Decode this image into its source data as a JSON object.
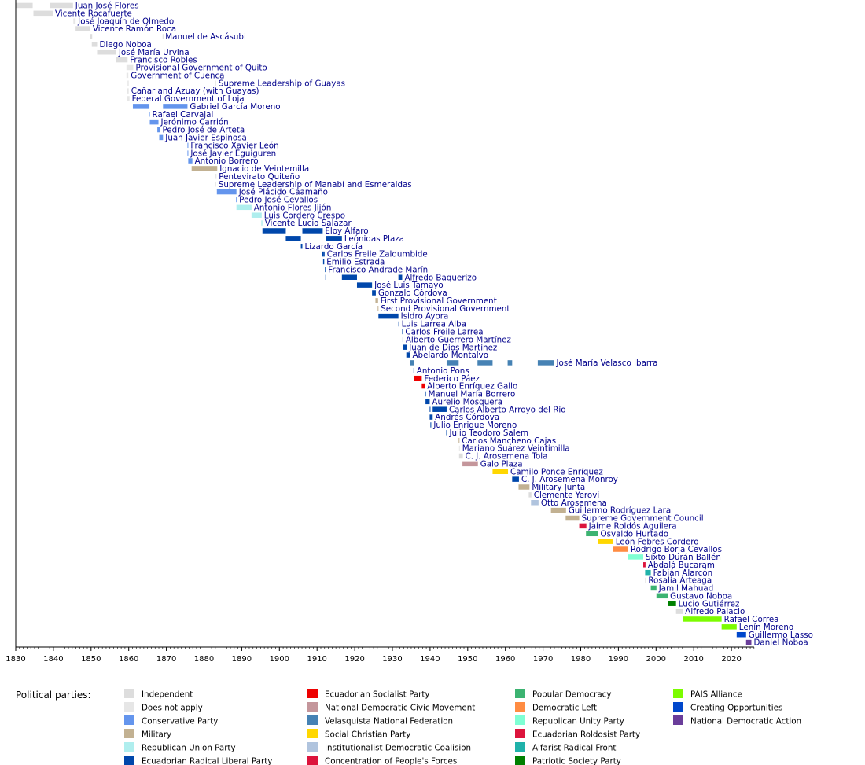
{
  "colors": {
    "Independent": "#DDDDDD",
    "Does not apply": "#E6E6E6",
    "Conservative Party": "#6495ED",
    "Military": "#C2B192",
    "Republican Union Party": "#AFEEEE",
    "Ecuadorian Radical Liberal Party": "#0047AB",
    "Ecuadorian Socialist Party": "#EE0000",
    "National Democratic Civic Movement": "#C4969B",
    "Velasquista National Federation": "#4682B4",
    "Social Christian Party": "#FFD700",
    "Institutionalist Democratic Coalision": "#B0C4DE",
    "Concentration of People's Forces": "#DC143C",
    "Popular Democracy": "#3CB371",
    "Democratic Left": "#FF8C42",
    "Republican Unity Party": "#7FFFD4",
    "Ecuadorian Roldosist Party": "#DC143C",
    "Alfarist Radical Front": "#20B2AA",
    "Patriotic Society Party": "#008000",
    "PAIS Alliance": "#7CFC00",
    "Creating Opportunities": "#0047CC",
    "National Democratic Action": "#6A3D9A"
  },
  "chart_data": {
    "type": "timeline",
    "xlim": [
      1830,
      2026
    ],
    "x_ticks": [
      "1830",
      "1840",
      "1850",
      "1860",
      "1870",
      "1880",
      "1890",
      "1900",
      "1910",
      "1920",
      "1930",
      "1940",
      "1950",
      "1960",
      "1970",
      "1980",
      "1990",
      "2000",
      "2010",
      "2020"
    ],
    "presidents": [
      {
        "name": "Juan José Flores",
        "terms": [
          [
            1830,
            1834.5,
            "Independent"
          ],
          [
            1839,
            1845.2,
            "Independent"
          ]
        ]
      },
      {
        "name": "Vicente Rocafuerte",
        "terms": [
          [
            1834.7,
            1839.8,
            "Independent"
          ]
        ]
      },
      {
        "name": "José Joaquín de Olmedo",
        "terms": [
          [
            1845.3,
            1845.9,
            "Does not apply"
          ]
        ]
      },
      {
        "name": "Vicente Ramón Roca",
        "terms": [
          [
            1845.9,
            1849.8,
            "Independent"
          ]
        ]
      },
      {
        "name": "Manuel de Ascásubi",
        "terms": [
          [
            1849.8,
            1850.3,
            "Independent"
          ],
          [
            1869,
            1869.1,
            "Independent"
          ]
        ]
      },
      {
        "name": "Diego Noboa",
        "terms": [
          [
            1850.2,
            1851.6,
            "Independent"
          ]
        ]
      },
      {
        "name": "José María Urvina",
        "terms": [
          [
            1851.6,
            1856.7,
            "Independent"
          ]
        ]
      },
      {
        "name": "Francisco Robles",
        "terms": [
          [
            1856.7,
            1859.7,
            "Independent"
          ]
        ]
      },
      {
        "name": "Provisional Government of Quito",
        "terms": [
          [
            1859.4,
            1861.2,
            "Does not apply"
          ]
        ]
      },
      {
        "name": "Government of Cuenca",
        "terms": [
          [
            1859.4,
            1859.9,
            "Does not apply"
          ]
        ]
      },
      {
        "name": "Supreme Leadership of Guayas",
        "terms": [
          [
            1859.7,
            1860,
            "Does not apply"
          ],
          [
            1883,
            1883.2,
            "Does not apply"
          ]
        ]
      },
      {
        "name": "Cañar and Azuay (with Guayas)",
        "terms": [
          [
            1859.5,
            1860,
            "Does not apply"
          ]
        ]
      },
      {
        "name": "Federal Government of Loja",
        "terms": [
          [
            1859.5,
            1860.2,
            "Does not apply"
          ]
        ]
      },
      {
        "name": "Gabriel García Moreno",
        "terms": [
          [
            1861.1,
            1865.5,
            "Conservative Party"
          ],
          [
            1869.1,
            1875.6,
            "Conservative Party"
          ]
        ]
      },
      {
        "name": "Rafael Carvajal",
        "terms": [
          [
            1865.4,
            1865.6,
            "Conservative Party"
          ]
        ]
      },
      {
        "name": "Jerónimo Carrión",
        "terms": [
          [
            1865.6,
            1867.9,
            "Conservative Party"
          ]
        ]
      },
      {
        "name": "Pedro José de Arteta",
        "terms": [
          [
            1867.6,
            1868.3,
            "Conservative Party"
          ]
        ]
      },
      {
        "name": "Juan Javier Espinosa",
        "terms": [
          [
            1868.1,
            1869.1,
            "Conservative Party"
          ]
        ]
      },
      {
        "name": "Francisco Xavier León",
        "terms": [
          [
            1875.6,
            1875.8,
            "Conservative Party"
          ]
        ]
      },
      {
        "name": "José Javier Eguiguren",
        "terms": [
          [
            1875.6,
            1875.8,
            "Conservative Party"
          ]
        ]
      },
      {
        "name": "Antonio Borrero",
        "terms": [
          [
            1875.8,
            1876.9,
            "Conservative Party"
          ]
        ]
      },
      {
        "name": "Ignacio de Veintemilla",
        "terms": [
          [
            1876.7,
            1883.5,
            "Military"
          ]
        ]
      },
      {
        "name": "Pentevirato Quiteño",
        "terms": [
          [
            1883,
            1883.3,
            "Does not apply"
          ]
        ]
      },
      {
        "name": "Supreme Leadership of Manabí and Esmeraldas",
        "terms": [
          [
            1883,
            1883.2,
            "Does not apply"
          ]
        ]
      },
      {
        "name": "José Plácido Caamaño",
        "terms": [
          [
            1883.4,
            1888.6,
            "Conservative Party"
          ]
        ]
      },
      {
        "name": "Pedro José Cevallos",
        "terms": [
          [
            1888.5,
            1888.7,
            "Conservative Party"
          ]
        ]
      },
      {
        "name": "Antonio Flores Jijón",
        "terms": [
          [
            1888.6,
            1892.6,
            "Republican Union Party"
          ]
        ]
      },
      {
        "name": "Luis Cordero Crespo",
        "terms": [
          [
            1892.6,
            1895.3,
            "Republican Union Party"
          ]
        ]
      },
      {
        "name": "Vicente Lucio Salazar",
        "terms": [
          [
            1895.2,
            1895.5,
            "Republican Union Party"
          ]
        ]
      },
      {
        "name": "Eloy Alfaro",
        "terms": [
          [
            1895.5,
            1901.7,
            "Ecuadorian Radical Liberal Party"
          ],
          [
            1906.1,
            1911.5,
            "Ecuadorian Radical Liberal Party"
          ]
        ]
      },
      {
        "name": "Leónidas Plaza",
        "terms": [
          [
            1901.7,
            1905.7,
            "Ecuadorian Radical Liberal Party"
          ],
          [
            1912.3,
            1916.6,
            "Ecuadorian Radical Liberal Party"
          ]
        ]
      },
      {
        "name": "Lizardo García",
        "terms": [
          [
            1905.7,
            1906.1,
            "Ecuadorian Radical Liberal Party"
          ]
        ]
      },
      {
        "name": "Carlos Freile Zaldumbide",
        "terms": [
          [
            1911.4,
            1911.8,
            "Ecuadorian Radical Liberal Party"
          ],
          [
            1911.8,
            1912,
            "Ecuadorian Radical Liberal Party"
          ]
        ]
      },
      {
        "name": "Emilio Estrada",
        "terms": [
          [
            1911.6,
            1911.9,
            "Ecuadorian Radical Liberal Party"
          ]
        ]
      },
      {
        "name": "Francisco Andrade Marín",
        "terms": [
          [
            1912.1,
            1912.3,
            "Ecuadorian Radical Liberal Party"
          ]
        ]
      },
      {
        "name": "Alfredo Baquerizo",
        "terms": [
          [
            1912.2,
            1912.4,
            "Ecuadorian Radical Liberal Party"
          ],
          [
            1916.6,
            1920.6,
            "Ecuadorian Radical Liberal Party"
          ],
          [
            1931.6,
            1932.6,
            "Ecuadorian Radical Liberal Party"
          ]
        ]
      },
      {
        "name": "José Luis Tamayo",
        "terms": [
          [
            1920.6,
            1924.6,
            "Ecuadorian Radical Liberal Party"
          ]
        ]
      },
      {
        "name": "Gonzalo Córdova",
        "terms": [
          [
            1924.6,
            1925.6,
            "Ecuadorian Radical Liberal Party"
          ]
        ]
      },
      {
        "name": "First Provisional Government",
        "terms": [
          [
            1925.5,
            1926.2,
            "Military"
          ]
        ]
      },
      {
        "name": "Second Provisional Government",
        "terms": [
          [
            1926.1,
            1926.3,
            "Military"
          ]
        ]
      },
      {
        "name": "Isidro Ayora",
        "terms": [
          [
            1926.3,
            1931.6,
            "Ecuadorian Radical Liberal Party"
          ]
        ]
      },
      {
        "name": "Luis Larrea Alba",
        "terms": [
          [
            1931.6,
            1931.8,
            "Ecuadorian Radical Liberal Party"
          ]
        ]
      },
      {
        "name": "Carlos Freile Larrea",
        "terms": [
          [
            1932.6,
            1932.8,
            "Ecuadorian Radical Liberal Party"
          ]
        ]
      },
      {
        "name": "Alberto Guerrero Martínez",
        "terms": [
          [
            1932.7,
            1932.9,
            "Ecuadorian Radical Liberal Party"
          ]
        ]
      },
      {
        "name": "Juan de Dios Martínez",
        "terms": [
          [
            1932.8,
            1933.8,
            "Ecuadorian Radical Liberal Party"
          ]
        ]
      },
      {
        "name": "Abelardo Montalvo",
        "terms": [
          [
            1933.7,
            1934.7,
            "Ecuadorian Radical Liberal Party"
          ]
        ]
      },
      {
        "name": "José María Velasco Ibarra",
        "terms": [
          [
            1934.7,
            1935.7,
            "Velasquista National Federation"
          ],
          [
            1944.4,
            1947.6,
            "Velasquista National Federation"
          ],
          [
            1952.6,
            1956.6,
            "Velasquista National Federation"
          ],
          [
            1960.6,
            1961.8,
            "Velasquista National Federation"
          ],
          [
            1968.6,
            1972.9,
            "Velasquista National Federation"
          ]
        ]
      },
      {
        "name": "Antonio Pons",
        "terms": [
          [
            1935.6,
            1935.8,
            "Ecuadorian Radical Liberal Party"
          ]
        ]
      },
      {
        "name": "Federico Páez",
        "terms": [
          [
            1935.7,
            1937.8,
            "Ecuadorian Socialist Party"
          ]
        ]
      },
      {
        "name": "Alberto Enríquez Gallo",
        "terms": [
          [
            1937.8,
            1938.6,
            "Ecuadorian Socialist Party"
          ]
        ]
      },
      {
        "name": "Manuel María Borrero",
        "terms": [
          [
            1938.6,
            1938.9,
            "Ecuadorian Radical Liberal Party"
          ]
        ]
      },
      {
        "name": "Aurelio Mosquera",
        "terms": [
          [
            1938.8,
            1939.9,
            "Ecuadorian Radical Liberal Party"
          ]
        ]
      },
      {
        "name": "Carlos Alberto Arroyo del Río",
        "terms": [
          [
            1939.9,
            1940.1,
            "Ecuadorian Radical Liberal Party"
          ],
          [
            1940.7,
            1944.4,
            "Ecuadorian Radical Liberal Party"
          ]
        ]
      },
      {
        "name": "Andrés Córdova",
        "terms": [
          [
            1939.9,
            1940.7,
            "Ecuadorian Radical Liberal Party"
          ]
        ]
      },
      {
        "name": "Julio Enrique Moreno",
        "terms": [
          [
            1940.1,
            1940.3,
            "Ecuadorian Radical Liberal Party"
          ]
        ]
      },
      {
        "name": "Julio Teodoro Salem",
        "terms": [
          [
            1944.3,
            1944.5,
            "Ecuadorian Radical Liberal Party"
          ]
        ]
      },
      {
        "name": "Carlos Mancheno Cajas",
        "terms": [
          [
            1947.6,
            1947.8,
            "Military"
          ]
        ]
      },
      {
        "name": "Mariano Suárez Veintimilla",
        "terms": [
          [
            1947.7,
            1947.9,
            "Does not apply"
          ]
        ]
      },
      {
        "name": "C. J. Arosemena Tola",
        "terms": [
          [
            1947.7,
            1948.7,
            "Independent"
          ]
        ]
      },
      {
        "name": "Galo Plaza",
        "terms": [
          [
            1948.6,
            1952.7,
            "National Democratic Civic Movement"
          ]
        ]
      },
      {
        "name": "Camilo Ponce Enríquez",
        "terms": [
          [
            1956.6,
            1960.7,
            "Social Christian Party"
          ]
        ]
      },
      {
        "name": "C. J. Arosemena Monroy",
        "terms": [
          [
            1961.8,
            1963.6,
            "Ecuadorian Radical Liberal Party"
          ]
        ]
      },
      {
        "name": "Military Junta",
        "terms": [
          [
            1963.5,
            1966.4,
            "Military"
          ]
        ]
      },
      {
        "name": "Clemente Yerovi",
        "terms": [
          [
            1966.2,
            1966.9,
            "Independent"
          ]
        ]
      },
      {
        "name": "Otto Arosemena",
        "terms": [
          [
            1966.8,
            1968.8,
            "Institutionalist Democratic Coalision"
          ]
        ]
      },
      {
        "name": "Guillermo Rodríguez Lara",
        "terms": [
          [
            1972.1,
            1976.1,
            "Military"
          ]
        ]
      },
      {
        "name": "Supreme Government Council",
        "terms": [
          [
            1976,
            1979.6,
            "Military"
          ]
        ]
      },
      {
        "name": "Jaime Roldós Aguilera",
        "terms": [
          [
            1979.6,
            1981.5,
            "Concentration of People's Forces"
          ]
        ]
      },
      {
        "name": "Osvaldo Hurtado",
        "terms": [
          [
            1981.4,
            1984.6,
            "Popular Democracy"
          ]
        ]
      },
      {
        "name": "León Febres Cordero",
        "terms": [
          [
            1984.6,
            1988.6,
            "Social Christian Party"
          ]
        ]
      },
      {
        "name": "Rodrigo Borja Cevallos",
        "terms": [
          [
            1988.6,
            1992.6,
            "Democratic Left"
          ]
        ]
      },
      {
        "name": "Sixto Durán Ballén",
        "terms": [
          [
            1992.6,
            1996.6,
            "Republican Unity Party"
          ]
        ]
      },
      {
        "name": "Abdalá Bucaram",
        "terms": [
          [
            1996.6,
            1997.2,
            "Ecuadorian Roldosist Party"
          ]
        ]
      },
      {
        "name": "Fabián Alarcón",
        "terms": [
          [
            1997.1,
            1998.6,
            "Alfarist Radical Front"
          ]
        ]
      },
      {
        "name": "Rosalía Arteaga",
        "terms": [
          [
            1997.1,
            1997.3,
            "Independent"
          ]
        ]
      },
      {
        "name": "Jamil Mahuad",
        "terms": [
          [
            1998.6,
            2000.1,
            "Popular Democracy"
          ]
        ]
      },
      {
        "name": "Gustavo Noboa",
        "terms": [
          [
            2000.1,
            2003.1,
            "Popular Democracy"
          ]
        ]
      },
      {
        "name": "Lucio Gutiérrez",
        "terms": [
          [
            2003.1,
            2005.3,
            "Patriotic Society Party"
          ]
        ]
      },
      {
        "name": "Alfredo Palacio",
        "terms": [
          [
            2005.3,
            2007.1,
            "Independent"
          ]
        ]
      },
      {
        "name": "Rafael Correa",
        "terms": [
          [
            2007.1,
            2017.4,
            "PAIS Alliance"
          ]
        ]
      },
      {
        "name": "Lenín Moreno",
        "terms": [
          [
            2017.4,
            2021.4,
            "PAIS Alliance"
          ]
        ]
      },
      {
        "name": "Guillermo Lasso",
        "terms": [
          [
            2021.4,
            2023.9,
            "Creating Opportunities"
          ]
        ]
      },
      {
        "name": "Daniel Noboa",
        "terms": [
          [
            2023.9,
            2025.3,
            "National Democratic Action"
          ]
        ]
      }
    ],
    "legend_title": "Political parties:",
    "legend_columns": [
      [
        "Independent",
        "Does not apply",
        "Conservative Party",
        "Military",
        "Republican Union Party",
        "Ecuadorian Radical Liberal Party"
      ],
      [
        "Ecuadorian Socialist Party",
        "National Democratic Civic Movement",
        "Velasquista National Federation",
        "Social Christian Party",
        "Institutionalist Democratic Coalision",
        "Concentration of People's Forces"
      ],
      [
        "Popular Democracy",
        "Democratic Left",
        "Republican Unity Party",
        "Ecuadorian Roldosist Party",
        "Alfarist Radical Front",
        "Patriotic Society Party"
      ],
      [
        "PAIS Alliance",
        "Creating Opportunities",
        "National Democratic Action"
      ]
    ]
  }
}
